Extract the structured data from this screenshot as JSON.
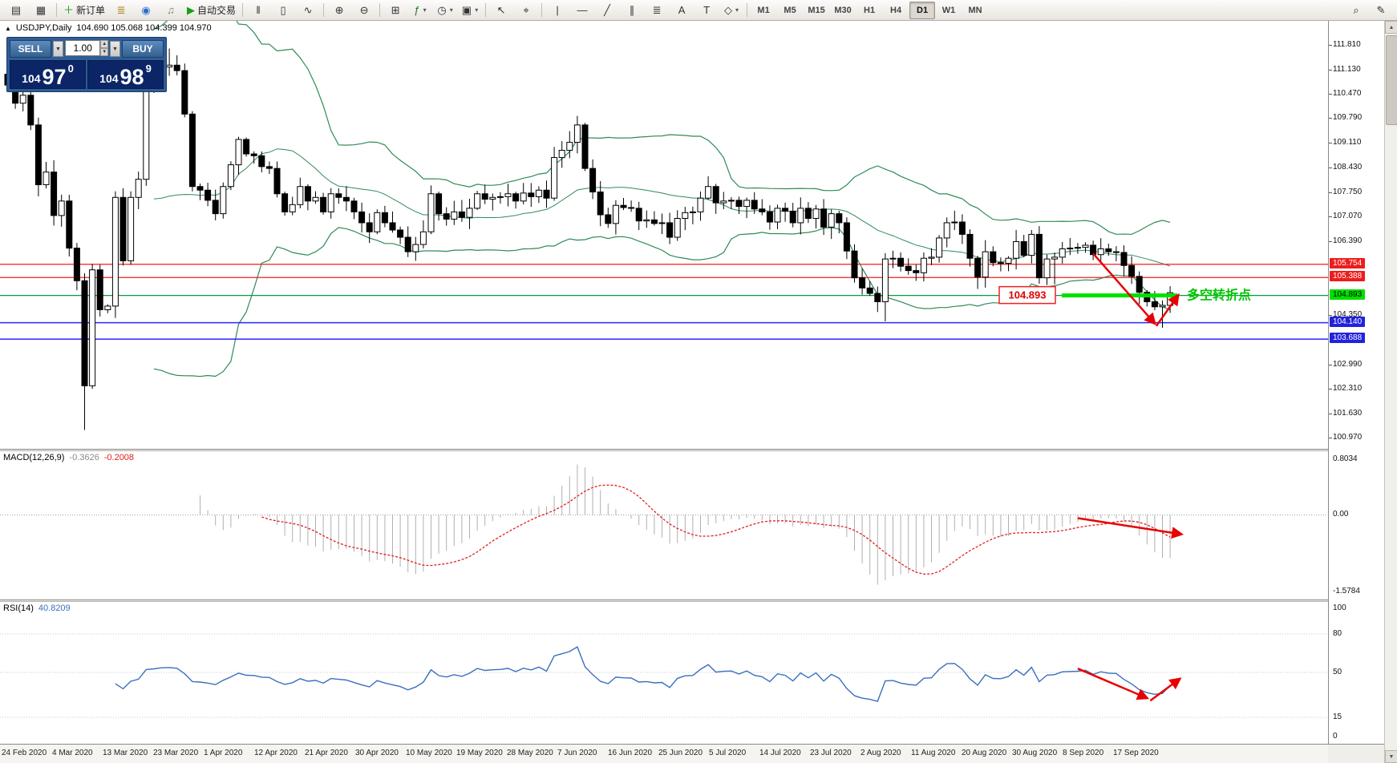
{
  "toolbar": {
    "items": [
      {
        "t": "icon",
        "name": "new-chart-icon",
        "g": "▤"
      },
      {
        "t": "icon",
        "name": "profiles-icon",
        "g": "▦"
      },
      {
        "t": "sep"
      },
      {
        "t": "btn",
        "name": "new-order-button",
        "g": "＋",
        "gc": "#18a018",
        "label": "新订单"
      },
      {
        "t": "icon",
        "name": "market-depth-icon",
        "g": "≣",
        "gc": "#a87c18"
      },
      {
        "t": "icon",
        "name": "mql5-icon",
        "g": "◉",
        "gc": "#2a6fd0"
      },
      {
        "t": "icon",
        "name": "sound-icon",
        "g": "♫",
        "gc": "#808080"
      },
      {
        "t": "btn",
        "name": "autotrading-button",
        "g": "▶",
        "gc": "#18a018",
        "label": "自动交易"
      },
      {
        "t": "sep"
      },
      {
        "t": "icon",
        "name": "bar-chart-icon",
        "g": "‖"
      },
      {
        "t": "icon",
        "name": "candlestick-icon",
        "g": "▯"
      },
      {
        "t": "icon",
        "name": "line-chart-icon",
        "g": "∿"
      },
      {
        "t": "sep"
      },
      {
        "t": "icon",
        "name": "zoom-in-icon",
        "g": "⊕"
      },
      {
        "t": "icon",
        "name": "zoom-out-icon",
        "g": "⊖"
      },
      {
        "t": "sep"
      },
      {
        "t": "icon",
        "name": "tile-windows-icon",
        "g": "⊞"
      },
      {
        "t": "icon",
        "name": "indicators-icon",
        "g": "ƒ",
        "gc": "#1a7a1a",
        "dd": true
      },
      {
        "t": "icon",
        "name": "periods-icon",
        "g": "◷",
        "dd": true
      },
      {
        "t": "icon",
        "name": "templates-icon",
        "g": "▣",
        "dd": true
      },
      {
        "t": "sep"
      },
      {
        "t": "icon",
        "name": "cursor-icon",
        "g": "↖"
      },
      {
        "t": "icon",
        "name": "crosshair-icon",
        "g": "⌖"
      },
      {
        "t": "sep"
      },
      {
        "t": "icon",
        "name": "vertical-line-icon",
        "g": "|"
      },
      {
        "t": "icon",
        "name": "horizontal-line-icon",
        "g": "—"
      },
      {
        "t": "icon",
        "name": "trendline-icon",
        "g": "╱"
      },
      {
        "t": "icon",
        "name": "channel-icon",
        "g": "∥"
      },
      {
        "t": "icon",
        "name": "fibonacci-icon",
        "g": "≣"
      },
      {
        "t": "icon",
        "name": "text-icon",
        "g": "A"
      },
      {
        "t": "icon",
        "name": "label-icon",
        "g": "T"
      },
      {
        "t": "icon",
        "name": "shapes-icon",
        "g": "◇",
        "dd": true
      },
      {
        "t": "sep"
      },
      {
        "t": "tf",
        "label": "M1"
      },
      {
        "t": "tf",
        "label": "M5"
      },
      {
        "t": "tf",
        "label": "M15"
      },
      {
        "t": "tf",
        "label": "M30"
      },
      {
        "t": "tf",
        "label": "H1"
      },
      {
        "t": "tf",
        "label": "H4"
      },
      {
        "t": "tf",
        "label": "D1",
        "active": true
      },
      {
        "t": "tf",
        "label": "W1"
      },
      {
        "t": "tf",
        "label": "MN"
      },
      {
        "t": "spacer"
      },
      {
        "t": "icon",
        "name": "search-icon",
        "g": "⌕"
      },
      {
        "t": "icon",
        "name": "edit-icon",
        "g": "✎"
      }
    ]
  },
  "chart": {
    "collapse_glyph": "▲",
    "title": "USDJPY,Daily",
    "quote_line": "104.690 105.068 104.399 104.970",
    "one_click": {
      "sell_label": "SELL",
      "buy_label": "BUY",
      "lot": "1.00",
      "sell_big": "104",
      "sell_pips": "97",
      "sell_frac": "0",
      "buy_big": "104",
      "buy_pips": "98",
      "buy_frac": "9",
      "dropdown_glyph": "▼",
      "spin_up": "▲",
      "spin_down": "▼"
    },
    "axis_ticks": [
      "111.810",
      "111.130",
      "110.470",
      "109.790",
      "109.110",
      "108.430",
      "107.750",
      "107.070",
      "106.390",
      "104.350",
      "102.990",
      "102.310",
      "101.630",
      "100.970"
    ],
    "axis_highlights": [
      {
        "value": "105.754",
        "bg": "#ee1c1c",
        "fg": "#ffffff"
      },
      {
        "value": "105.388",
        "bg": "#ee1c1c",
        "fg": "#ffffff"
      },
      {
        "value": "104.893",
        "bg": "#00e000",
        "fg": "#000000"
      },
      {
        "value": "104.140",
        "bg": "#2222dd",
        "fg": "#ffffff"
      },
      {
        "value": "103.688",
        "bg": "#2222dd",
        "fg": "#ffffff"
      }
    ],
    "dates": [
      "24 Feb 2020",
      "4 Mar 2020",
      "13 Mar 2020",
      "23 Mar 2020",
      "1 Apr 2020",
      "12 Apr 2020",
      "21 Apr 2020",
      "30 Apr 2020",
      "10 May 2020",
      "19 May 2020",
      "28 May 2020",
      "7 Jun 2020",
      "16 Jun 2020",
      "25 Jun 2020",
      "5 Jul 2020",
      "14 Jul 2020",
      "23 Jul 2020",
      "2 Aug 2020",
      "11 Aug 2020",
      "20 Aug 2020",
      "30 Aug 2020",
      "8 Sep 2020",
      "17 Sep 2020"
    ],
    "annotations": {
      "price_label": "104.893",
      "cn_label": "多空转折点",
      "arrow_color": "#e80000",
      "pivot_line_color": "#00a040",
      "pivot_segment_color": "#00e000",
      "resistance_color": "#f02020",
      "support_color": "#2828ff",
      "cn_label_color": "#00c400"
    }
  },
  "macd": {
    "name": "MACD(12,26,9)",
    "value_main": "-0.3626",
    "value_signal": "-0.2008",
    "axis": {
      "top": "0.8034",
      "zero": "0.00",
      "bottom": "-1.5784"
    }
  },
  "rsi": {
    "name": "RSI(14)",
    "value": "40.8209",
    "axis": [
      {
        "label": "100",
        "v": 100
      },
      {
        "label": "80",
        "v": 80
      },
      {
        "label": "50",
        "v": 50
      },
      {
        "label": "15",
        "v": 15
      },
      {
        "label": "0",
        "v": 0
      }
    ]
  },
  "chart_data": {
    "type": "candlestick",
    "symbol": "USDJPY",
    "period": "Daily",
    "price_axis": {
      "min": 100.97,
      "max": 111.81,
      "tick_step": 0.68
    },
    "ohlc_today": {
      "open": 104.69,
      "high": 105.068,
      "low": 104.399,
      "close": 104.97
    },
    "quote": {
      "bid": "104.970",
      "ask": "104.989"
    },
    "levels": {
      "resistance": [
        105.754,
        105.388
      ],
      "pivot": 104.893,
      "support": [
        104.14,
        103.688
      ]
    },
    "indicators": {
      "bollinger": {
        "period": 20,
        "deviation": 2
      },
      "macd": {
        "fast": 12,
        "slow": 26,
        "signal": 9,
        "main": -0.3626,
        "signal_value": -0.2008
      },
      "rsi": {
        "period": 14,
        "value": 40.8209,
        "levels": [
          80,
          50,
          15
        ]
      }
    },
    "first_open": 111.0,
    "closes": [
      110.7,
      110.2,
      110.42,
      109.6,
      107.95,
      108.3,
      107.1,
      107.5,
      106.2,
      105.3,
      102.4,
      105.6,
      104.5,
      104.6,
      107.6,
      105.85,
      107.6,
      108.1,
      110.7,
      110.9,
      111.2,
      111.25,
      111.1,
      109.9,
      107.9,
      107.8,
      107.52,
      107.15,
      107.9,
      108.5,
      109.2,
      108.8,
      108.75,
      108.45,
      108.4,
      107.7,
      107.2,
      107.4,
      107.9,
      107.5,
      107.6,
      107.2,
      107.7,
      107.6,
      107.5,
      107.2,
      106.9,
      106.65,
      107.18,
      106.9,
      106.7,
      106.5,
      106.1,
      106.3,
      106.65,
      107.7,
      107.15,
      107.0,
      107.2,
      107.05,
      107.3,
      107.7,
      107.55,
      107.6,
      107.62,
      107.7,
      107.5,
      107.72,
      107.62,
      107.8,
      107.58,
      108.7,
      108.9,
      109.12,
      109.6,
      108.4,
      107.75,
      107.12,
      106.88,
      107.38,
      107.32,
      107.3,
      106.95,
      106.98,
      106.88,
      106.9,
      106.5,
      107.02,
      107.18,
      107.2,
      107.58,
      107.9,
      107.45,
      107.5,
      107.52,
      107.35,
      107.52,
      107.28,
      107.2,
      106.92,
      107.3,
      107.22,
      106.9,
      107.3,
      107.02,
      107.28,
      106.78,
      107.15,
      106.9,
      106.12,
      105.38,
      105.1,
      104.95,
      104.72,
      105.9,
      105.92,
      105.7,
      105.58,
      105.52,
      105.92,
      105.95,
      106.48,
      106.9,
      106.92,
      106.58,
      105.92,
      105.4,
      106.1,
      105.8,
      105.78,
      105.92,
      106.38,
      106.0,
      106.58,
      105.38,
      105.9,
      105.95,
      106.18,
      106.2,
      106.22,
      106.28,
      106.02,
      106.18,
      106.1,
      106.08,
      105.72,
      105.42,
      104.98,
      104.72,
      104.58,
      104.62,
      104.97
    ],
    "overrides": {
      "10": {
        "low": 101.18
      },
      "19": {
        "high": 111.5
      },
      "20": {
        "high": 111.62
      },
      "21": {
        "high": 111.71
      },
      "74": {
        "high": 109.85
      },
      "114": {
        "low": 104.18
      },
      "136": {
        "low": 105.2
      },
      "150": {
        "low": 104.0
      }
    }
  }
}
